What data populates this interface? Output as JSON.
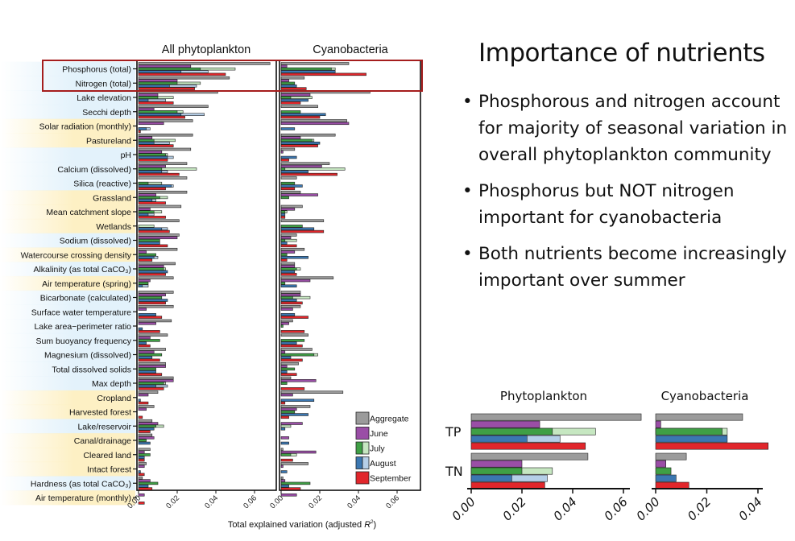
{
  "slide": {
    "title": "Importance of nutrients",
    "bullets": [
      "Phosphorous and nitrogen account for majority of seasonal variation in overall phytoplankton community",
      "Phosphorus but NOT nitrogen important for cyanobacteria",
      "Both nutrients become increasingly important over summer"
    ]
  },
  "colors": {
    "Aggregate": "#9b9b9b",
    "June": "#9a4ea6",
    "July": "#3f9f45",
    "July_light": "#c6e7c1",
    "August": "#3b77b1",
    "August_light": "#b5cfe8",
    "September": "#e1262b",
    "highlight_box": "#a51d1d",
    "label_band_yellow": "#fdf0c4",
    "label_band_blue": "#e3f2fb"
  },
  "chart_data": [
    {
      "type": "bar",
      "orientation": "horizontal",
      "panels": [
        "All phytoplankton",
        "Cyanobacteria"
      ],
      "xlabel": "Total explained variation (adjusted R²)",
      "xlabel_main": "Total explained variation (adjusted ",
      "xlabel_sym": "R",
      "xlabel_sup": "2",
      "xlabel_end": ")",
      "xlim": [
        0,
        0.07
      ],
      "xticks": [
        "0.00",
        "0.02",
        "0.04",
        "0.06"
      ],
      "legend": [
        "Aggregate",
        "June",
        "July",
        "August",
        "September"
      ],
      "legend_position": "bottom-right",
      "value_order": [
        "Aggregate",
        "June",
        "July",
        "July (light)",
        "August",
        "August (light)",
        "September"
      ],
      "highlighted": [
        "Phosphorus (total)",
        "Nitrogen (total)"
      ],
      "rows": [
        {
          "label": "Phosphorus (total)",
          "band": "blue",
          "all": [
            0.068,
            0.027,
            0.032,
            0.05,
            0.022,
            0.036,
            0.045
          ],
          "cyano": [
            0.035,
            0.003,
            0.026,
            0.028,
            0.028,
            null,
            0.044
          ]
        },
        {
          "label": "Nitrogen (total)",
          "band": "blue",
          "all": [
            0.047,
            0.02,
            0.02,
            0.032,
            0.016,
            0.03,
            0.029
          ],
          "cyano": [
            0.012,
            0.004,
            0.007,
            null,
            0.008,
            null,
            0.013
          ]
        },
        {
          "label": "Lake elevation",
          "band": "blue",
          "all": [
            0.041,
            0.01,
            0.01,
            0.018,
            0.005,
            0.014,
            0.018
          ],
          "cyano": [
            0.046,
            0.015,
            0.005,
            0.016,
            0.014,
            null,
            0.01
          ]
        },
        {
          "label": "Secchi depth",
          "band": "blue",
          "all": [
            0.036,
            0.008,
            0.02,
            0.023,
            0.022,
            0.034,
            0.024
          ],
          "cyano": [
            0.019,
            0,
            0.01,
            null,
            0.023,
            null,
            0.02
          ]
        },
        {
          "label": "Solar radiation (monthly)",
          "band": "yellow",
          "all": [
            0.028,
            0.013,
            0,
            null,
            0.004,
            0.006,
            0.001
          ],
          "cyano": [
            0.034,
            0.035,
            0,
            null,
            0.007,
            null,
            0
          ]
        },
        {
          "label": "Pastureland",
          "band": "yellow",
          "all": [
            0.028,
            0.007,
            0.008,
            0.019,
            0.008,
            0.016,
            0.018
          ],
          "cyano": [
            0.028,
            0.01,
            0.016,
            0.017,
            0.02,
            null,
            0.019
          ]
        },
        {
          "label": "pH",
          "band": "blue",
          "all": [
            0.027,
            0.012,
            0.014,
            0.015,
            0.015,
            0.018,
            0.015
          ],
          "cyano": [
            0.007,
            0.001,
            0,
            null,
            0.008,
            null,
            0.004
          ]
        },
        {
          "label": "Calcium (dissolved)",
          "band": "blue",
          "all": [
            0.025,
            0.014,
            0.012,
            0.03,
            0.012,
            0.015,
            0.021
          ],
          "cyano": [
            0.025,
            0.021,
            0.002,
            0.033,
            0.014,
            null,
            0.029
          ]
        },
        {
          "label": "Silica (reactive)",
          "band": "blue",
          "all": [
            0.025,
            0,
            0.005,
            0.012,
            0.017,
            0.018,
            0.014
          ],
          "cyano": [
            0.008,
            0,
            0.007,
            null,
            0.011,
            null,
            0.007
          ]
        },
        {
          "label": "Grassland",
          "band": "yellow",
          "all": [
            0.025,
            0.009,
            0.011,
            0.015,
            0.007,
            0.009,
            0.014
          ],
          "cyano": [
            0.01,
            0.019,
            0.004,
            null,
            0,
            null,
            0
          ]
        },
        {
          "label": "Mean catchment slope",
          "band": "yellow",
          "all": [
            0.022,
            0.006,
            0.008,
            0.012,
            0.005,
            0.008,
            0.014
          ],
          "cyano": [
            0.011,
            0.007,
            0.002,
            0.003,
            0.002,
            null,
            0.002
          ]
        },
        {
          "label": "Wetlands",
          "band": "yellow",
          "all": [
            0.021,
            0,
            0,
            0.008,
            0.012,
            0.015,
            0.016
          ],
          "cyano": [
            0.022,
            0,
            0.011,
            null,
            0.017,
            null,
            0.022
          ]
        },
        {
          "label": "Sodium (dissolved)",
          "band": "blue",
          "all": [
            0.021,
            0.02,
            0.011,
            null,
            0.011,
            null,
            0.015
          ],
          "cyano": [
            0.008,
            0.005,
            0.002,
            0.008,
            0.003,
            null,
            0.008
          ]
        },
        {
          "label": "Watercourse crossing density",
          "band": "yellow",
          "all": [
            0.02,
            0.004,
            0.009,
            null,
            0.008,
            0.01,
            0.007
          ],
          "cyano": [
            0.012,
            0.007,
            0.003,
            null,
            0.014,
            null,
            0.003
          ]
        },
        {
          "label": "Alkalinity (as total CaCO₃)",
          "band": "blue",
          "all": [
            0.019,
            0.013,
            0.013,
            0.014,
            0.015,
            null,
            0.014
          ],
          "cyano": [
            0.007,
            0.007,
            0.008,
            0.01,
            0.007,
            null,
            0.008
          ]
        },
        {
          "label": "Air temperature (spring)",
          "band": "yellow",
          "all": [
            0.018,
            0.006,
            0.005,
            null,
            0.002,
            0.005,
            0
          ],
          "cyano": [
            0.027,
            0.015,
            0.002,
            null,
            0.008,
            null,
            0
          ]
        },
        {
          "label": "Bicarbonate (calculated)",
          "band": "blue",
          "all": [
            0.018,
            0.014,
            0.012,
            null,
            0.015,
            null,
            0.014
          ],
          "cyano": [
            0.01,
            0.01,
            0.006,
            0.015,
            0.008,
            null,
            0.011
          ]
        },
        {
          "label": "Surface water temperature",
          "band": "blue",
          "all": [
            0.018,
            0.004,
            0,
            null,
            0.009,
            null,
            0.012
          ],
          "cyano": [
            0.01,
            0.006,
            0,
            null,
            0.007,
            null,
            0.014
          ]
        },
        {
          "label": "Lake area−perimeter ratio",
          "band": "blue",
          "all": [
            0.017,
            0.009,
            0,
            null,
            0.002,
            null,
            0.011
          ],
          "cyano": [
            0.006,
            0.004,
            0.001,
            null,
            0,
            null,
            0.012
          ]
        },
        {
          "label": "Sum buoyancy frequency",
          "band": "blue",
          "all": [
            0.015,
            0.006,
            0.011,
            null,
            0.004,
            null,
            0.006
          ],
          "cyano": [
            0.014,
            0,
            0.012,
            null,
            0.008,
            null,
            0.011
          ]
        },
        {
          "label": "Magnesium (dissolved)",
          "band": "blue",
          "all": [
            0.014,
            0.008,
            0.012,
            null,
            0.007,
            null,
            0.011
          ],
          "cyano": [
            0.016,
            0.002,
            0.017,
            0.019,
            0.005,
            null,
            0.011
          ]
        },
        {
          "label": "Total dissolved solids",
          "band": "blue",
          "all": [
            0.014,
            0.014,
            0.009,
            null,
            0.009,
            null,
            0.012
          ],
          "cyano": [
            0.009,
            0.003,
            0.007,
            null,
            0.003,
            null,
            0.008
          ]
        },
        {
          "label": "Max depth",
          "band": "blue",
          "all": [
            0.018,
            0.018,
            0.013,
            0.014,
            0.009,
            0.015,
            0.013
          ],
          "cyano": [
            0.005,
            0.018,
            0.003,
            null,
            0,
            null,
            0.012
          ]
        },
        {
          "label": "Cropland",
          "band": "yellow",
          "all": [
            0.01,
            0.005,
            0,
            null,
            0.001,
            null,
            0.005
          ],
          "cyano": [
            0.032,
            0.006,
            0,
            null,
            0.017,
            null,
            0.002
          ]
        },
        {
          "label": "Harvested forest",
          "band": "yellow",
          "all": [
            0.008,
            0.004,
            0,
            null,
            0,
            null,
            0.002
          ],
          "cyano": [
            0.015,
            0.008,
            0.007,
            null,
            0.014,
            null,
            0.004
          ]
        },
        {
          "label": "Lake/reservoir",
          "band": "blue",
          "all": [
            0.007,
            0.01,
            0.009,
            0.013,
            0.008,
            null,
            0.006
          ],
          "cyano": [
            0,
            0.011,
            0,
            0.005,
            0.002,
            null,
            0
          ]
        },
        {
          "label": "Canal/drainage",
          "band": "yellow",
          "all": [
            0.007,
            0.008,
            0.004,
            null,
            0.006,
            null,
            0
          ],
          "cyano": [
            0,
            0.004,
            0,
            null,
            0.004,
            null,
            0
          ]
        },
        {
          "label": "Cleared land",
          "band": "yellow",
          "all": [
            0.006,
            0.003,
            0.006,
            null,
            0.003,
            null,
            0.003
          ],
          "cyano": [
            0.001,
            0.018,
            0.005,
            0.008,
            0,
            null,
            0.006
          ]
        },
        {
          "label": "Intact forest",
          "band": "yellow",
          "all": [
            0.004,
            0.003,
            0,
            null,
            0.001,
            null,
            0.003
          ],
          "cyano": [
            0.014,
            0.001,
            0,
            null,
            0.003,
            null,
            0
          ]
        },
        {
          "label": "Hardness (as total CaCO₃)",
          "band": "blue",
          "all": [
            0.002,
            0.006,
            0.01,
            null,
            0.005,
            null,
            0.007
          ],
          "cyano": [
            0.001,
            0.002,
            0.015,
            null,
            0.004,
            null,
            0.01
          ]
        },
        {
          "label": "Air temperature (monthly)",
          "band": "yellow",
          "all": [
            0,
            0.003,
            0,
            null,
            0,
            null,
            0.003
          ],
          "cyano": [
            0,
            0.008,
            0,
            null,
            0,
            null,
            0
          ]
        }
      ]
    },
    {
      "type": "bar",
      "orientation": "horizontal",
      "panels": [
        {
          "title": "Phytoplankton",
          "xlim": [
            0,
            0.062
          ],
          "xticks": [
            "0.00",
            "0.02",
            "0.04",
            "0.06"
          ]
        },
        {
          "title": "Cyanobacteria",
          "xlim": [
            0,
            0.042
          ],
          "xticks": [
            "0.00",
            "0.02",
            "0.04"
          ]
        }
      ],
      "categories": [
        "TP",
        "TN"
      ],
      "value_order": [
        "Aggregate",
        "June",
        "July",
        "July (light)",
        "August",
        "August (light)",
        "September"
      ],
      "values": {
        "Phytoplankton": {
          "TP": [
            0.067,
            0.027,
            0.032,
            0.049,
            0.022,
            0.035,
            0.045
          ],
          "TN": [
            0.046,
            0.02,
            0.02,
            0.032,
            0.016,
            0.03,
            0.029
          ]
        },
        "Cyanobacteria": {
          "TP": [
            0.034,
            0.002,
            0.026,
            0.028,
            0.028,
            null,
            0.044
          ],
          "TN": [
            0.012,
            0.004,
            0.006,
            null,
            0.008,
            null,
            0.013
          ]
        }
      }
    }
  ]
}
